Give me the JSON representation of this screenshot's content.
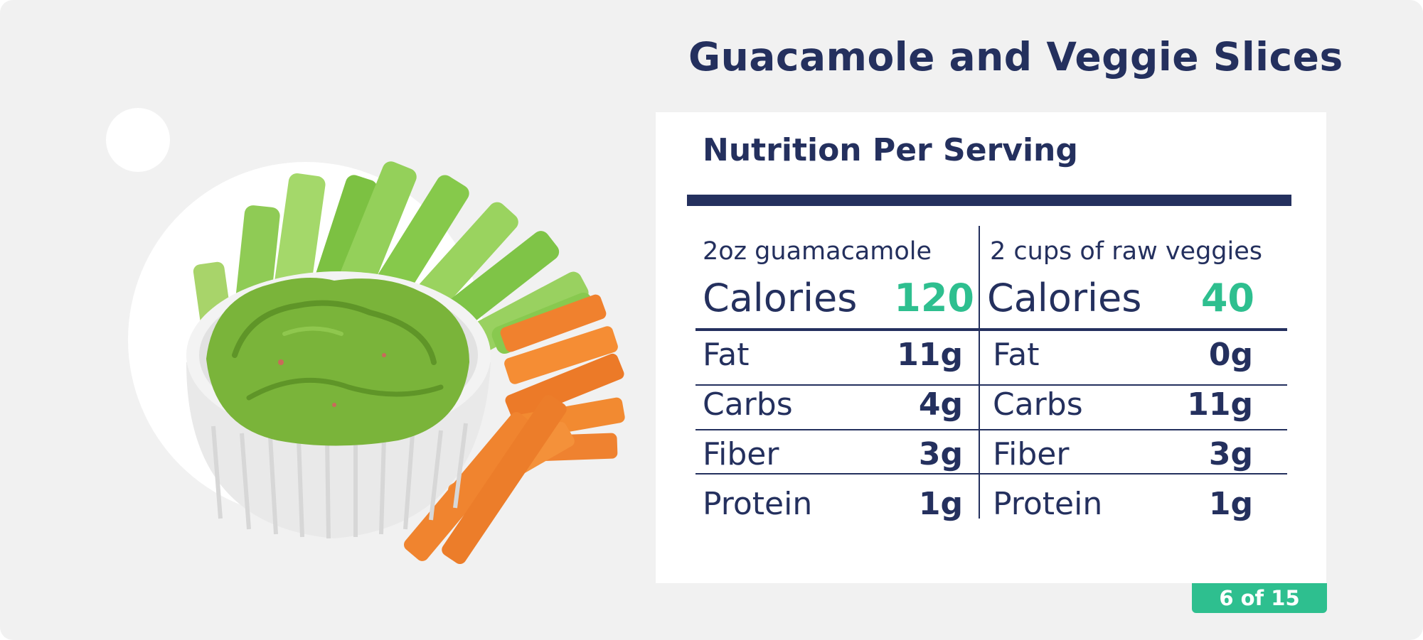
{
  "title": "Guacamole and Veggie Slices",
  "card": {
    "heading": "Nutrition Per Serving",
    "columns": [
      {
        "serving": "2oz guamacamole",
        "calories_label": "Calories",
        "calories_value": "120",
        "rows": [
          {
            "name": "Fat",
            "amount": "11g"
          },
          {
            "name": "Carbs",
            "amount": "4g"
          },
          {
            "name": "Fiber",
            "amount": "3g"
          },
          {
            "name": "Protein",
            "amount": "1g"
          }
        ]
      },
      {
        "serving": "2 cups of raw veggies",
        "calories_label": "Calories",
        "calories_value": "40",
        "rows": [
          {
            "name": "Fat",
            "amount": "0g"
          },
          {
            "name": "Carbs",
            "amount": "11g"
          },
          {
            "name": "Fiber",
            "amount": "3g"
          },
          {
            "name": "Protein",
            "amount": "1g"
          }
        ]
      }
    ]
  },
  "pagination": {
    "label": "6 of 15"
  },
  "colors": {
    "navy": "#24305e",
    "accent_green": "#2ebf8f",
    "background": "#f1f1f1",
    "card": "#ffffff"
  },
  "illustration": {
    "icons": [
      "guacamole-bowl-icon",
      "celery-sticks-icon",
      "carrot-sticks-icon"
    ]
  }
}
